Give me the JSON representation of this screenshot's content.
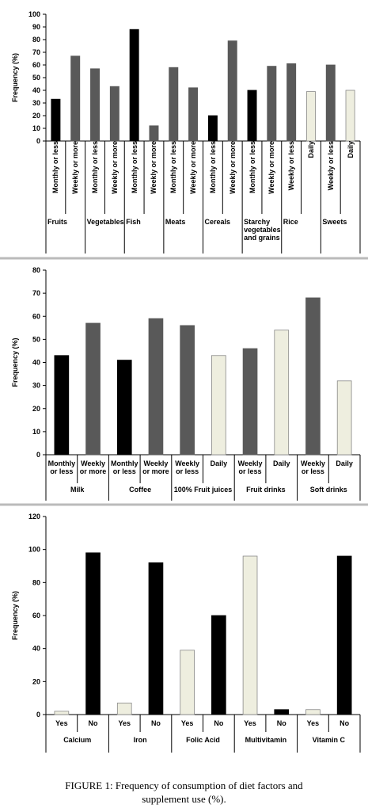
{
  "chart_data": [
    {
      "type": "bar",
      "y_label": "Frequency (%)",
      "ylim": [
        0,
        100
      ],
      "yticks": [
        0,
        10,
        20,
        30,
        40,
        50,
        60,
        70,
        80,
        90,
        100
      ],
      "groups": [
        {
          "name": "Fruits",
          "categories": [
            "Monthly or less",
            "Weekly or more"
          ],
          "values": [
            33,
            67
          ],
          "colors": [
            "#000000",
            "#595959"
          ]
        },
        {
          "name": "Vegetables",
          "categories": [
            "Monthly or less",
            "Weekly or more"
          ],
          "values": [
            57,
            43
          ],
          "colors": [
            "#595959",
            "#595959"
          ]
        },
        {
          "name": "Fish",
          "categories": [
            "Monthly or less",
            "Weekly or more"
          ],
          "values": [
            88,
            12
          ],
          "colors": [
            "#000000",
            "#595959"
          ]
        },
        {
          "name": "Meats",
          "categories": [
            "Monthly or less",
            "Weekly or more"
          ],
          "values": [
            58,
            42
          ],
          "colors": [
            "#595959",
            "#595959"
          ]
        },
        {
          "name": "Cereals",
          "categories": [
            "Monthly or less",
            "Weekly or more"
          ],
          "values": [
            20,
            79
          ],
          "colors": [
            "#000000",
            "#595959"
          ]
        },
        {
          "name": "Starchy vegetables and grains",
          "categories": [
            "Monthly or less",
            "Weekly or more"
          ],
          "values": [
            40,
            59
          ],
          "colors": [
            "#000000",
            "#595959"
          ]
        },
        {
          "name": "Rice",
          "categories": [
            "Weekly or less",
            "Daily"
          ],
          "values": [
            61,
            39
          ],
          "colors": [
            "#595959",
            "#eeeedf"
          ]
        },
        {
          "name": "Sweets",
          "categories": [
            "Weekly or less",
            "Daily"
          ],
          "values": [
            60,
            40
          ],
          "colors": [
            "#595959",
            "#eeeedf"
          ]
        }
      ]
    },
    {
      "type": "bar",
      "y_label": "Frequency (%)",
      "ylim": [
        0,
        80
      ],
      "yticks": [
        0,
        10,
        20,
        30,
        40,
        50,
        60,
        70,
        80
      ],
      "groups": [
        {
          "name": "Milk",
          "categories": [
            "Monthly or less",
            "Weekly or more"
          ],
          "values": [
            43,
            57
          ],
          "colors": [
            "#000000",
            "#595959"
          ]
        },
        {
          "name": "Coffee",
          "categories": [
            "Monthly or less",
            "Weekly or more"
          ],
          "values": [
            41,
            59
          ],
          "colors": [
            "#000000",
            "#595959"
          ]
        },
        {
          "name": "100% Fruit juices",
          "categories": [
            "Weekly or less",
            "Daily"
          ],
          "values": [
            56,
            43
          ],
          "colors": [
            "#595959",
            "#eeeedf"
          ]
        },
        {
          "name": "Fruit drinks",
          "categories": [
            "Weekly or less",
            "Daily"
          ],
          "values": [
            46,
            54
          ],
          "colors": [
            "#595959",
            "#eeeedf"
          ]
        },
        {
          "name": "Soft drinks",
          "categories": [
            "Weekly or less",
            "Daily"
          ],
          "values": [
            68,
            32
          ],
          "colors": [
            "#595959",
            "#eeeedf"
          ]
        }
      ]
    },
    {
      "type": "bar",
      "y_label": "Frequency (%)",
      "ylim": [
        0,
        120
      ],
      "yticks": [
        0,
        20,
        40,
        60,
        80,
        100,
        120
      ],
      "groups": [
        {
          "name": "Calcium",
          "categories": [
            "Yes",
            "No"
          ],
          "values": [
            2,
            98
          ],
          "colors": [
            "#eeeedf",
            "#000000"
          ]
        },
        {
          "name": "Iron",
          "categories": [
            "Yes",
            "No"
          ],
          "values": [
            7,
            92
          ],
          "colors": [
            "#eeeedf",
            "#000000"
          ]
        },
        {
          "name": "Folic Acid",
          "categories": [
            "Yes",
            "No"
          ],
          "values": [
            39,
            60
          ],
          "colors": [
            "#eeeedf",
            "#000000"
          ]
        },
        {
          "name": "Multivitamin",
          "categories": [
            "Yes",
            "No"
          ],
          "values": [
            96,
            3
          ],
          "colors": [
            "#eeeedf",
            "#000000"
          ]
        },
        {
          "name": "Vitamin C",
          "categories": [
            "Yes",
            "No"
          ],
          "values": [
            3,
            96
          ],
          "colors": [
            "#eeeedf",
            "#000000"
          ]
        }
      ]
    }
  ],
  "caption": "FIGURE 1: Frequency of consumption of diet factors and supplement use (%)."
}
